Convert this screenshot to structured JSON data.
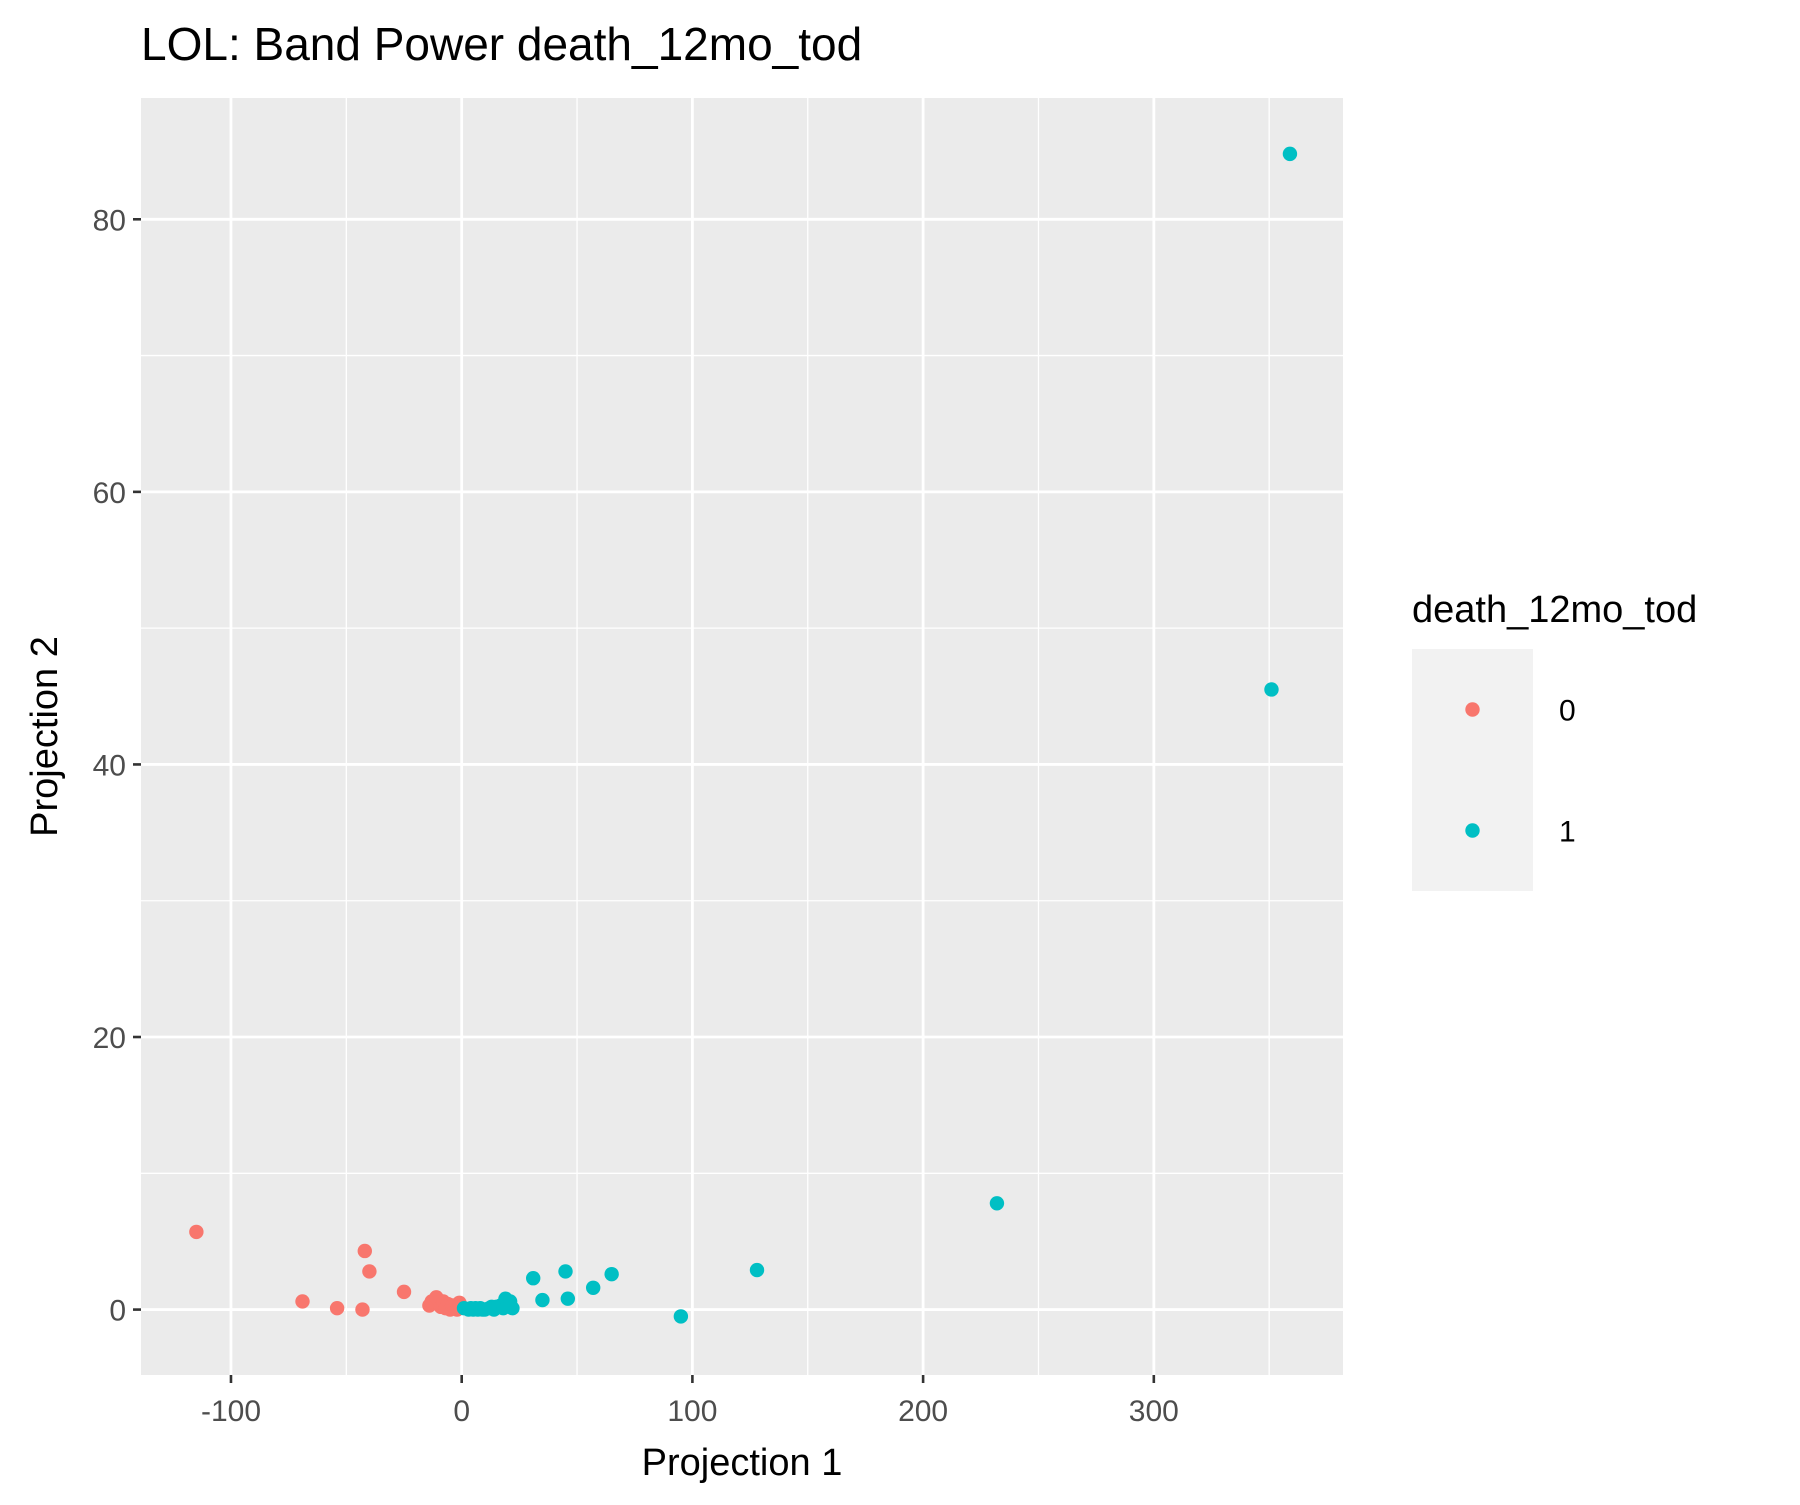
{
  "chart_data": {
    "type": "scatter",
    "title": "LOL: Band Power death_12mo_tod",
    "xlabel": "Projection 1",
    "ylabel": "Projection 2",
    "xlim": [
      -139,
      382
    ],
    "ylim": [
      -4.8,
      88.9
    ],
    "x_ticks": [
      -100,
      0,
      100,
      200,
      300
    ],
    "x_tick_labels": [
      "-100",
      "0",
      "100",
      "200",
      "300"
    ],
    "y_ticks": [
      0,
      20,
      40,
      60,
      80
    ],
    "y_tick_labels": [
      "0",
      "20",
      "40",
      "60",
      "80"
    ],
    "grid": true,
    "legend": {
      "title": "death_12mo_tod",
      "position": "right",
      "entries": [
        "0",
        "1"
      ]
    },
    "series": [
      {
        "name": "0",
        "color": "#F8766D",
        "points": [
          [
            -115,
            5.7
          ],
          [
            -69,
            0.6
          ],
          [
            -54,
            0.1
          ],
          [
            -43,
            0.0
          ],
          [
            -42,
            4.3
          ],
          [
            -40,
            2.8
          ],
          [
            -25,
            1.3
          ],
          [
            -14,
            0.3
          ],
          [
            -13,
            0.6
          ],
          [
            -11,
            0.9
          ],
          [
            -9,
            0.2
          ],
          [
            -8,
            0.6
          ],
          [
            -7,
            0.1
          ],
          [
            -6,
            0.4
          ],
          [
            -5,
            0.0
          ],
          [
            -4,
            0.3
          ],
          [
            -3,
            0.1
          ],
          [
            -2,
            0.0
          ],
          [
            -1,
            0.5
          ]
        ]
      },
      {
        "name": "1",
        "color": "#00BFC4",
        "points": [
          [
            1,
            0.1
          ],
          [
            3,
            0.0
          ],
          [
            4,
            0.1
          ],
          [
            5,
            0.0
          ],
          [
            6,
            0.1
          ],
          [
            7,
            0.0
          ],
          [
            8,
            0.1
          ],
          [
            9,
            0.0
          ],
          [
            10,
            0.0
          ],
          [
            12,
            0.1
          ],
          [
            13,
            0.2
          ],
          [
            14,
            0.0
          ],
          [
            15,
            0.2
          ],
          [
            17,
            0.3
          ],
          [
            18,
            0.1
          ],
          [
            19,
            0.2
          ],
          [
            19,
            0.8
          ],
          [
            20,
            0.4
          ],
          [
            21,
            0.6
          ],
          [
            22,
            0.1
          ],
          [
            31,
            2.3
          ],
          [
            35,
            0.7
          ],
          [
            45,
            2.8
          ],
          [
            46,
            0.8
          ],
          [
            57,
            1.6
          ],
          [
            65,
            2.6
          ],
          [
            95,
            -0.5
          ],
          [
            128,
            2.9
          ],
          [
            232,
            7.8
          ],
          [
            351,
            45.5
          ],
          [
            359,
            84.8
          ]
        ]
      }
    ]
  }
}
